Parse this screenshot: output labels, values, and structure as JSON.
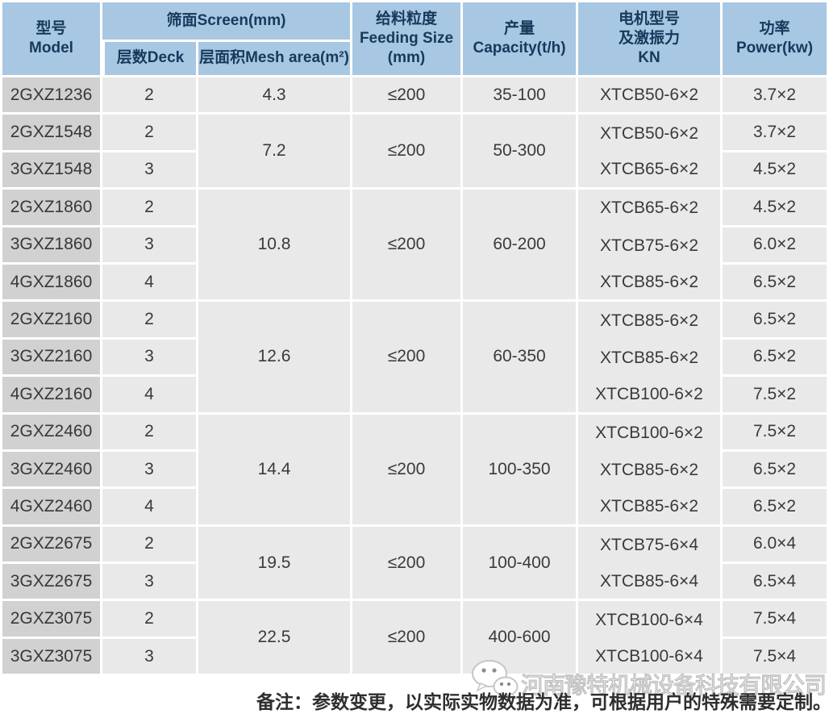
{
  "table": {
    "header": {
      "model": "型号\nModel",
      "screen": "筛面Screen(mm)",
      "deck": "层数Deck",
      "mesh_area": "层面积Mesh area(m²)",
      "feeding_size": "给料粒度\nFeeding Size\n(mm)",
      "capacity": "产量\nCapacity(t/h)",
      "motor": "电机型号\n及激振力\nKN",
      "power": "功率\nPower(kw)"
    },
    "groups": [
      {
        "mesh_area": "4.3",
        "feeding_size": "≤200",
        "capacity": "35-100",
        "rows": [
          {
            "model": "2GXZ1236",
            "deck": "2",
            "motor": "XTCB50-6×2",
            "power": "3.7×2"
          }
        ]
      },
      {
        "mesh_area": "7.2",
        "feeding_size": "≤200",
        "capacity": "50-300",
        "rows": [
          {
            "model": "2GXZ1548",
            "deck": "2",
            "motor": "XTCB50-6×2",
            "power": "3.7×2"
          },
          {
            "model": "3GXZ1548",
            "deck": "3",
            "motor": "XTCB65-6×2",
            "power": "4.5×2"
          }
        ]
      },
      {
        "mesh_area": "10.8",
        "feeding_size": "≤200",
        "capacity": "60-200",
        "rows": [
          {
            "model": "2GXZ1860",
            "deck": "2",
            "motor": "XTCB65-6×2",
            "power": "4.5×2"
          },
          {
            "model": "3GXZ1860",
            "deck": "3",
            "motor": "XTCB75-6×2",
            "power": "6.0×2"
          },
          {
            "model": "4GXZ1860",
            "deck": "4",
            "motor": "XTCB85-6×2",
            "power": "6.5×2"
          }
        ]
      },
      {
        "mesh_area": "12.6",
        "feeding_size": "≤200",
        "capacity": "60-350",
        "rows": [
          {
            "model": "2GXZ2160",
            "deck": "2",
            "motor": "XTCB85-6×2",
            "power": "6.5×2"
          },
          {
            "model": "3GXZ2160",
            "deck": "3",
            "motor": "XTCB85-6×2",
            "power": "6.5×2"
          },
          {
            "model": "4GXZ2160",
            "deck": "4",
            "motor": "XTCB100-6×2",
            "power": "7.5×2"
          }
        ]
      },
      {
        "mesh_area": "14.4",
        "feeding_size": "≤200",
        "capacity": "100-350",
        "rows": [
          {
            "model": "2GXZ2460",
            "deck": "2",
            "motor": "XTCB100-6×2",
            "power": "7.5×2"
          },
          {
            "model": "3GXZ2460",
            "deck": "3",
            "motor": "XTCB85-6×2",
            "power": "6.5×2"
          },
          {
            "model": "4GXZ2460",
            "deck": "4",
            "motor": "XTCB85-6×2",
            "power": "6.5×2"
          }
        ]
      },
      {
        "mesh_area": "19.5",
        "feeding_size": "≤200",
        "capacity": "100-400",
        "rows": [
          {
            "model": "2GXZ2675",
            "deck": "2",
            "motor": "XTCB75-6×4",
            "power": "6.0×4"
          },
          {
            "model": "3GXZ2675",
            "deck": "3",
            "motor": "XTCB85-6×4",
            "power": "6.5×4"
          }
        ]
      },
      {
        "mesh_area": "22.5",
        "feeding_size": "≤200",
        "capacity": "400-600",
        "rows": [
          {
            "model": "2GXZ3075",
            "deck": "2",
            "motor": "XTCB100-6×4",
            "power": "7.5×4"
          },
          {
            "model": "3GXZ3075",
            "deck": "3",
            "motor": "XTCB100-6×4",
            "power": "7.5×4"
          }
        ]
      }
    ]
  },
  "watermark": {
    "icon": "wechat-icon",
    "text": "河南豫特机械设备科技有限公司"
  },
  "remark": {
    "text": "备注：参数变更，以实际实物数据为准，可根据用户的特殊需要定制。"
  },
  "colors": {
    "header_bg": "#a8c7e2",
    "header_text": "#17395c",
    "model_cell_bg": "#d1d1d1",
    "data_cell_bg": "#e9e9e9",
    "grid_line": "#ffffff",
    "data_text": "#3a3a3a",
    "remark_text": "#2e2e2e",
    "watermark_stroke": "#bcbcbc"
  }
}
